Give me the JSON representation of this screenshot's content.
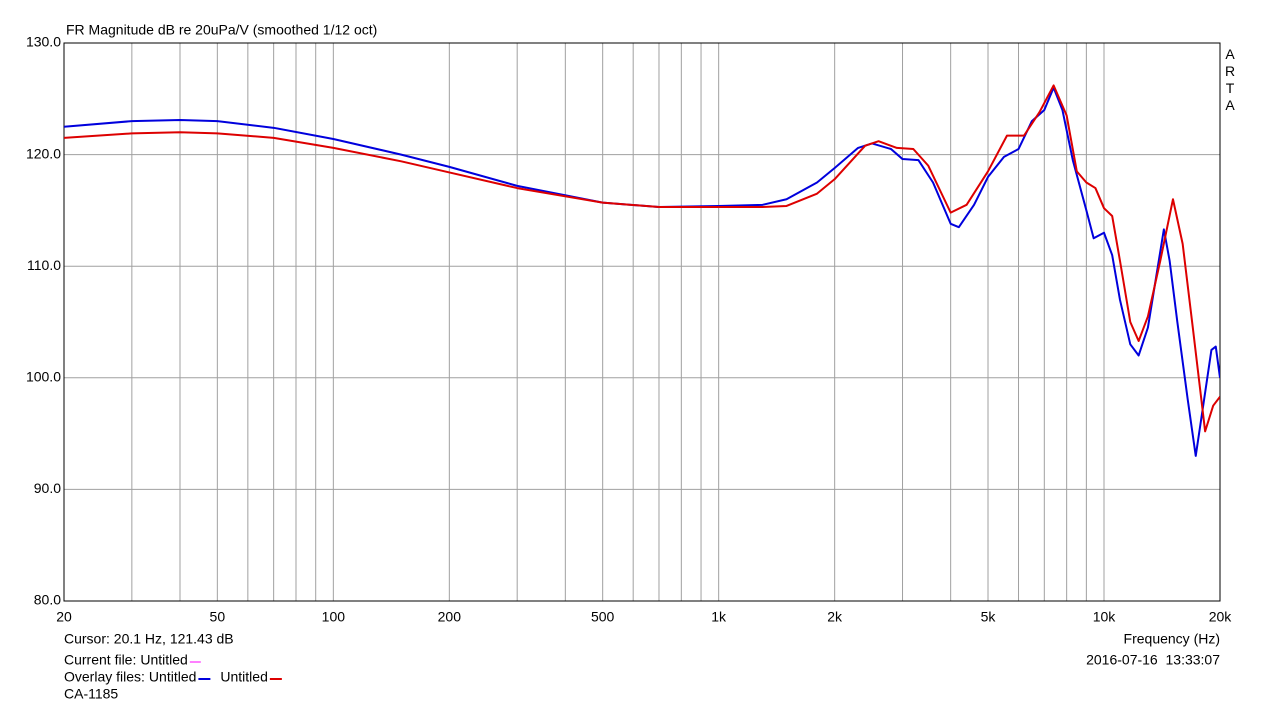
{
  "chart_data": {
    "type": "line",
    "title": "FR Magnitude dB re 20uPa/V (smoothed 1/12 oct)",
    "side_label": "ARTA",
    "x_label": "Frequency (Hz)",
    "cursor": "Cursor: 20.1 Hz, 121.43 dB",
    "timestamp": "2016-07-16  13:33:07",
    "device": "CA-1185",
    "current_file": {
      "label": "Current file:",
      "name": "Untitled",
      "color": "#ff80ff"
    },
    "overlay_label": "Overlay files:",
    "x_log": true,
    "grid": true,
    "xlim": [
      20,
      20000
    ],
    "xticks": [
      20,
      50,
      100,
      200,
      500,
      {
        "value": 1000,
        "label": "1k"
      },
      {
        "value": 2000,
        "label": "2k"
      },
      {
        "value": 5000,
        "label": "5k"
      },
      {
        "value": 10000,
        "label": "10k"
      },
      {
        "value": 20000,
        "label": "20k"
      }
    ],
    "xgrid_minor": [
      30,
      40,
      60,
      70,
      80,
      90,
      300,
      400,
      600,
      700,
      800,
      900,
      3000,
      4000,
      6000,
      7000,
      8000,
      9000
    ],
    "ylim": [
      80,
      130
    ],
    "yticks": [
      {
        "value": 80,
        "label": "80.0"
      },
      {
        "value": 90,
        "label": "90.0"
      },
      {
        "value": 100,
        "label": "100.0"
      },
      {
        "value": 110,
        "label": "110.0"
      },
      {
        "value": 120,
        "label": "120.0"
      },
      {
        "value": 130,
        "label": "130.0"
      }
    ],
    "series": [
      {
        "name": "Untitled",
        "color": "#0000dd",
        "x": [
          20,
          30,
          40,
          50,
          70,
          100,
          150,
          200,
          300,
          500,
          700,
          1000,
          1300,
          1500,
          1800,
          2000,
          2300,
          2500,
          2800,
          3000,
          3300,
          3600,
          4000,
          4200,
          4600,
          5000,
          5500,
          6000,
          6500,
          7000,
          7400,
          7800,
          8300,
          9000,
          9400,
          10000,
          10500,
          11000,
          11700,
          12300,
          13000,
          13800,
          14300,
          14800,
          15500,
          16500,
          17300,
          18000,
          19000,
          19500,
          20000
        ],
        "values": [
          122.5,
          123.0,
          123.1,
          123.0,
          122.4,
          121.4,
          120.0,
          118.9,
          117.2,
          115.7,
          115.3,
          115.4,
          115.5,
          116.0,
          117.5,
          118.8,
          120.6,
          121.0,
          120.5,
          119.6,
          119.5,
          117.5,
          113.8,
          113.5,
          115.5,
          118.0,
          119.8,
          120.5,
          123.0,
          124.0,
          126.0,
          124.0,
          119.5,
          115.0,
          112.5,
          113.0,
          111.0,
          107.0,
          103.0,
          102.0,
          104.5,
          110.0,
          113.3,
          110.5,
          105.0,
          98.0,
          93.0,
          97.0,
          102.5,
          102.8,
          100.0
        ]
      },
      {
        "name": "Untitled",
        "color": "#dd0000",
        "x": [
          20,
          30,
          40,
          50,
          70,
          100,
          150,
          200,
          300,
          500,
          700,
          1000,
          1300,
          1500,
          1800,
          2000,
          2400,
          2600,
          2900,
          3200,
          3500,
          4000,
          4400,
          5000,
          5600,
          6200,
          6800,
          7400,
          8000,
          8500,
          9000,
          9500,
          10000,
          10500,
          11000,
          11700,
          12300,
          13000,
          14000,
          15100,
          16000,
          17000,
          18300,
          19200,
          20000
        ],
        "values": [
          121.5,
          121.9,
          122.0,
          121.9,
          121.5,
          120.6,
          119.4,
          118.4,
          117.0,
          115.7,
          115.3,
          115.3,
          115.3,
          115.4,
          116.5,
          117.8,
          120.8,
          121.2,
          120.6,
          120.5,
          119.0,
          114.8,
          115.5,
          118.5,
          121.7,
          121.7,
          123.8,
          126.2,
          123.5,
          118.5,
          117.5,
          117.0,
          115.2,
          114.5,
          110.5,
          105.0,
          103.3,
          105.5,
          110.5,
          116.0,
          112.0,
          104.5,
          95.2,
          97.5,
          98.3
        ]
      }
    ]
  }
}
